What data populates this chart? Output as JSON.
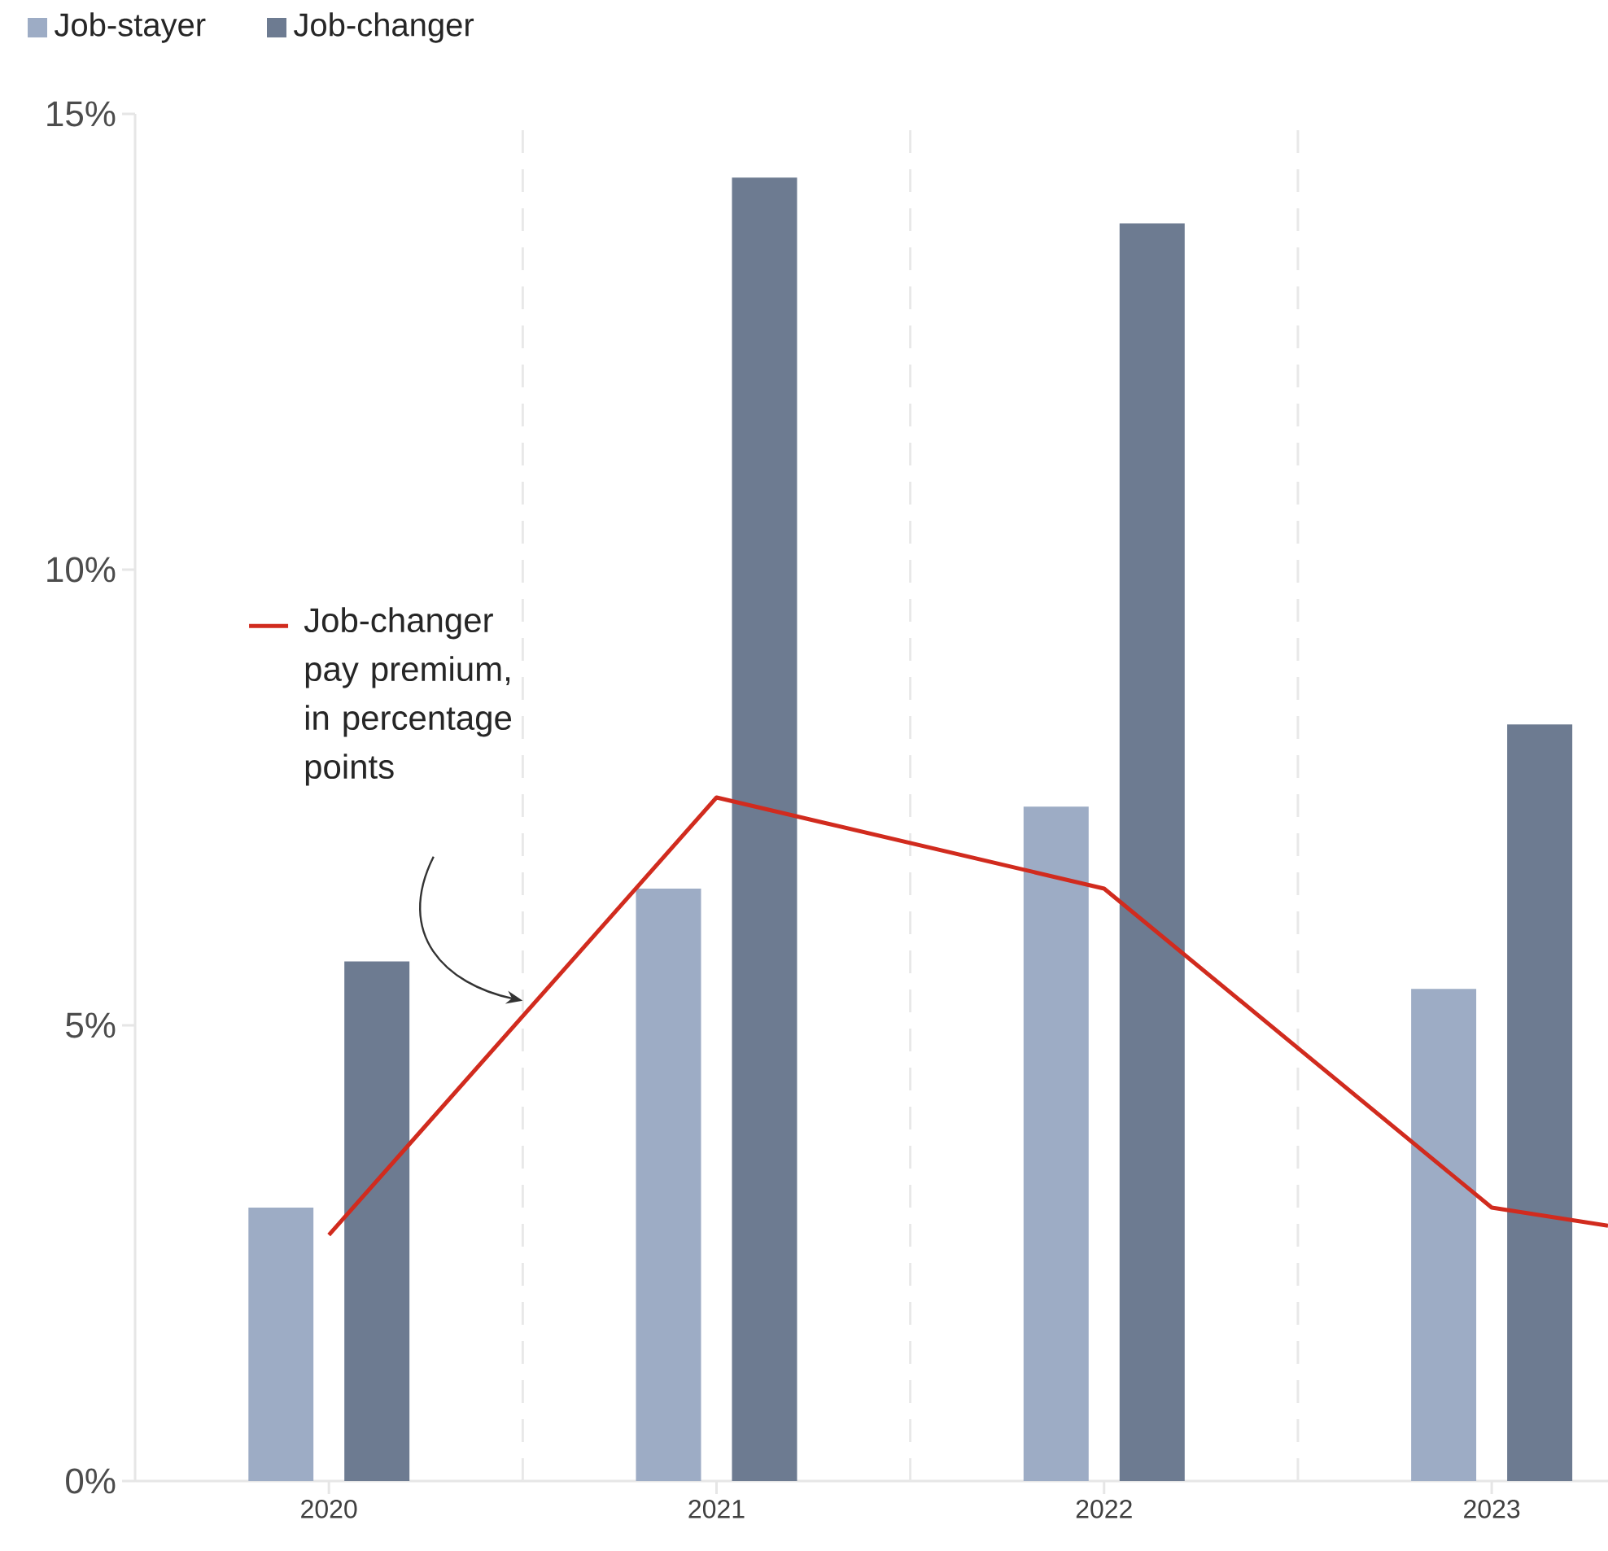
{
  "chart_data": {
    "type": "bar",
    "x": [
      2020,
      2021,
      2022,
      2023
    ],
    "xlim": [
      2019.5,
      2023.3
    ],
    "xticks": [
      2020,
      2021,
      2022,
      2023
    ],
    "ylim": [
      0,
      15
    ],
    "yticks": [
      {
        "value": 0,
        "label": "0%"
      },
      {
        "value": 5,
        "label": "5%"
      },
      {
        "value": 10,
        "label": "10%"
      },
      {
        "value": 15,
        "label": "15%"
      }
    ],
    "legend": "top left",
    "series": [
      {
        "name": "Job-stayer",
        "color": "#9dacc5",
        "values": [
          3.0,
          6.5,
          7.4,
          5.4
        ]
      },
      {
        "name": "Job-changer",
        "color": "#6d7b91",
        "values": [
          5.7,
          14.3,
          13.8,
          8.3
        ]
      },
      {
        "name": "Job-changer pay premium, in percentage points",
        "type": "line",
        "color": "#d12b1e",
        "x": [
          2020,
          2021,
          2022,
          2023,
          2023.3
        ],
        "values": [
          2.7,
          7.5,
          6.5,
          3.0,
          2.8
        ]
      }
    ],
    "ref_lines": [
      {
        "axis": "x",
        "value": 2020.5,
        "line_style": "dashed",
        "color": "#e8e8e8"
      },
      {
        "axis": "x",
        "value": 2021.5,
        "line_style": "dashed",
        "color": "#e8e8e8"
      },
      {
        "axis": "x",
        "value": 2022.5,
        "line_style": "dashed",
        "color": "#e8e8e8"
      }
    ]
  }
}
